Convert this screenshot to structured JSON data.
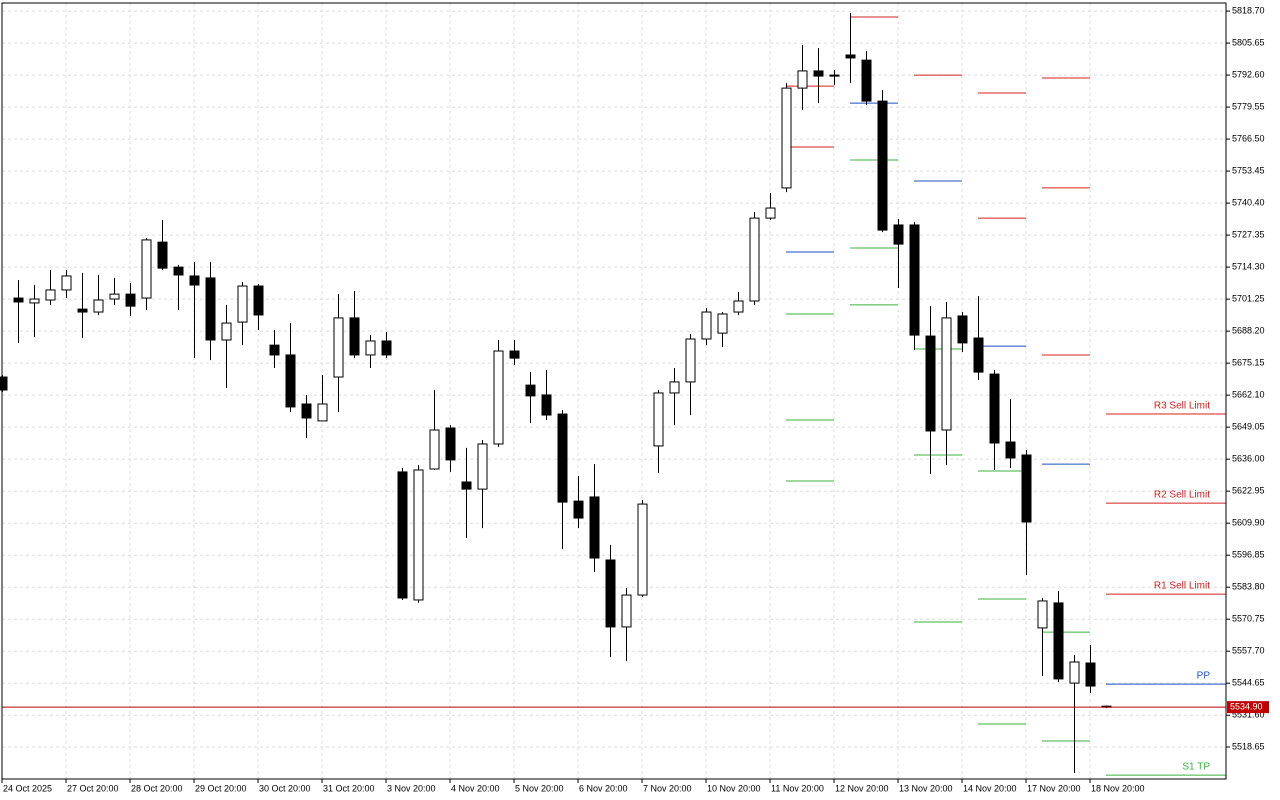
{
  "chart_data": {
    "type": "candlestick",
    "categories": [
      "24 Oct 2025",
      null,
      null,
      null,
      "27 Oct 20:00",
      null,
      null,
      null,
      "28 Oct 20:00",
      null,
      null,
      null,
      "29 Oct 20:00",
      null,
      null,
      null,
      "30 Oct 20:00",
      null,
      null,
      null,
      "31 Oct 20:00",
      null,
      null,
      null,
      "3 Nov 20:00",
      null,
      null,
      null,
      "4 Nov 20:00",
      null,
      null,
      null,
      "5 Nov 20:00",
      null,
      null,
      null,
      "6 Nov 20:00",
      null,
      null,
      null,
      "7 Nov 20:00",
      null,
      null,
      null,
      "10 Nov 20:00",
      null,
      null,
      null,
      "11 Nov 20:00",
      null,
      null,
      null,
      "12 Nov 20:00",
      null,
      null,
      null,
      "13 Nov 20:00",
      null,
      null,
      null,
      "14 Nov 20:00",
      null,
      null,
      null,
      "17 Nov 20:00",
      null,
      null,
      null,
      "18 Nov 20:00",
      null
    ],
    "open": [
      5669.5,
      5701.7,
      5699.7,
      5700.9,
      5705.0,
      5697.2,
      5696.0,
      5701.3,
      5703.3,
      5701.7,
      5724.5,
      5714.3,
      5710.7,
      5709.9,
      5684.6,
      5691.9,
      5706.6,
      5682.5,
      5678.5,
      5658.5,
      5651.6,
      5669.5,
      5693.6,
      5678.5,
      5684.2,
      5630.8,
      5578.6,
      5632.0,
      5648.7,
      5626.7,
      5623.8,
      5642.2,
      5680.1,
      5666.2,
      5662.2,
      5654.4,
      5618.9,
      5620.6,
      5594.9,
      5567.6,
      5580.6,
      5641.4,
      5663.0,
      5667.5,
      5685.0,
      5687.4,
      5696.0,
      5700.5,
      5734.3,
      5746.6,
      5787.3,
      5794.3,
      5792.6,
      5800.8,
      5798.7,
      5782.0,
      5731.5,
      5731.5,
      5686.2,
      5647.9,
      5694.4,
      5685.4,
      5670.7,
      5643.0,
      5637.7,
      5567.2,
      5577.4,
      5544.7,
      5552.9,
      5535.3
    ],
    "high": [
      5670.3,
      5709.0,
      5707.0,
      5713.1,
      5713.1,
      5711.9,
      5711.1,
      5709.9,
      5707.8,
      5726.2,
      5733.5,
      5715.2,
      5716.4,
      5716.4,
      5698.9,
      5708.2,
      5707.4,
      5688.7,
      5691.5,
      5662.2,
      5670.3,
      5703.3,
      5704.6,
      5686.6,
      5687.8,
      5632.4,
      5633.6,
      5664.2,
      5649.9,
      5640.6,
      5643.8,
      5684.6,
      5684.6,
      5671.5,
      5672.4,
      5656.0,
      5629.1,
      5634.0,
      5601.0,
      5583.5,
      5619.3,
      5664.2,
      5673.2,
      5687.0,
      5697.6,
      5696.0,
      5704.2,
      5736.8,
      5744.5,
      5789.4,
      5804.9,
      5803.6,
      5794.7,
      5817.9,
      5802.4,
      5786.5,
      5733.9,
      5732.7,
      5698.4,
      5700.1,
      5696.0,
      5702.5,
      5672.4,
      5660.5,
      5639.7,
      5579.4,
      5582.3,
      5556.2,
      5560.2,
      5535.5
    ],
    "low": [
      5663.4,
      5683.4,
      5685.8,
      5698.9,
      5701.7,
      5685.4,
      5694.8,
      5698.9,
      5694.4,
      5696.8,
      5713.1,
      5696.8,
      5677.2,
      5676.4,
      5665.0,
      5682.5,
      5688.7,
      5673.2,
      5655.2,
      5644.6,
      5651.6,
      5655.2,
      5677.2,
      5673.2,
      5677.2,
      5578.6,
      5577.4,
      5631.6,
      5630.8,
      5603.9,
      5607.9,
      5641.0,
      5674.4,
      5650.7,
      5652.0,
      5599.4,
      5607.9,
      5590.0,
      5555.3,
      5553.7,
      5579.8,
      5630.4,
      5649.9,
      5654.0,
      5682.5,
      5681.7,
      5694.8,
      5698.9,
      5733.5,
      5744.9,
      5778.4,
      5781.2,
      5788.5,
      5789.4,
      5780.4,
      5728.6,
      5705.8,
      5680.5,
      5630.0,
      5633.6,
      5679.7,
      5668.3,
      5631.6,
      5632.4,
      5588.8,
      5547.6,
      5545.1,
      5508.0,
      5540.7,
      5534.5
    ],
    "close": [
      5664.2,
      5700.1,
      5701.3,
      5705.0,
      5710.7,
      5696.0,
      5700.9,
      5703.3,
      5698.4,
      5725.4,
      5713.9,
      5711.1,
      5707.0,
      5684.6,
      5691.5,
      5706.6,
      5694.8,
      5678.5,
      5657.3,
      5652.8,
      5658.5,
      5693.6,
      5678.5,
      5684.2,
      5678.5,
      5579.4,
      5631.6,
      5647.9,
      5635.7,
      5623.8,
      5642.2,
      5680.1,
      5677.2,
      5661.8,
      5654.0,
      5618.5,
      5612.0,
      5595.7,
      5567.6,
      5580.6,
      5617.7,
      5663.0,
      5667.5,
      5685.0,
      5696.0,
      5695.2,
      5700.5,
      5734.3,
      5738.4,
      5787.3,
      5794.3,
      5792.2,
      5792.2,
      5799.6,
      5782.0,
      5729.4,
      5723.7,
      5686.6,
      5647.5,
      5693.6,
      5683.4,
      5671.5,
      5642.6,
      5636.5,
      5610.4,
      5578.2,
      5546.4,
      5553.3,
      5543.5,
      5534.9
    ],
    "ylim": [
      5505.6,
      5822.0
    ],
    "yticks": [
      {
        "value": 5818.7,
        "label": "5818.70"
      },
      {
        "value": 5805.65,
        "label": "5805.65"
      },
      {
        "value": 5792.6,
        "label": "5792.60"
      },
      {
        "value": 5779.55,
        "label": "5779.55"
      },
      {
        "value": 5766.5,
        "label": "5766.50"
      },
      {
        "value": 5753.45,
        "label": "5753.45"
      },
      {
        "value": 5740.4,
        "label": "5740.40"
      },
      {
        "value": 5727.35,
        "label": "5727.35"
      },
      {
        "value": 5714.3,
        "label": "5714.30"
      },
      {
        "value": 5701.25,
        "label": "5701.25"
      },
      {
        "value": 5688.2,
        "label": "5688.20"
      },
      {
        "value": 5675.15,
        "label": "5675.15"
      },
      {
        "value": 5662.1,
        "label": "5662.10"
      },
      {
        "value": 5649.05,
        "label": "5649.05"
      },
      {
        "value": 5636,
        "label": "5636.00"
      },
      {
        "value": 5622.95,
        "label": "5622.95"
      },
      {
        "value": 5609.9,
        "label": "5609.90"
      },
      {
        "value": 5596.85,
        "label": "5596.85"
      },
      {
        "value": 5583.8,
        "label": "5583.80"
      },
      {
        "value": 5570.75,
        "label": "5570.75"
      },
      {
        "value": 5557.7,
        "label": "5557.70"
      },
      {
        "value": 5544.65,
        "label": "5544.65"
      },
      {
        "value": 5531.6,
        "label": "5531.60"
      },
      {
        "value": 5518.65,
        "label": "5518.65"
      }
    ],
    "grid": true,
    "up_color": "#ffffff",
    "down_color": "#000000",
    "resistance_color": "#d42020",
    "pivot_color": "#1f4fbf",
    "support_color": "#3cb03c",
    "levels": [
      {
        "candle": 49,
        "resistance": [
          5788.1,
          5763.3
        ],
        "pivot": 5720.5,
        "support": [
          5695.2,
          5652.0,
          5627.1
        ]
      },
      {
        "candle": 53,
        "resistance": [
          5816.3
        ],
        "pivot": 5781.2,
        "support": [
          5758.0,
          5722.1,
          5698.9
        ]
      },
      {
        "candle": 57,
        "resistance": [
          5792.6
        ],
        "pivot": 5749.4,
        "support": [
          5680.9,
          5637.7,
          5569.6
        ]
      },
      {
        "candle": 61,
        "resistance": [
          5785.3,
          5734.3
        ],
        "pivot": 5682.1,
        "support": [
          5631.2,
          5579.0,
          5528.0
        ]
      },
      {
        "candle": 65,
        "resistance": [
          5791.4,
          5746.6,
          5678.5
        ],
        "pivot": 5634.0,
        "support": [
          5565.5,
          5521.1
        ]
      }
    ],
    "current_levels": [
      {
        "label": "R3 Sell Limit",
        "value": 5654.4,
        "color": "#d42020"
      },
      {
        "label": "R2 Sell Limit",
        "value": 5618.1,
        "color": "#d42020"
      },
      {
        "label": "R1 Sell Limit",
        "value": 5581.0,
        "color": "#d42020"
      },
      {
        "label": "PP",
        "value": 5544.3,
        "color": "#1f4fbf"
      },
      {
        "label": "S1 TP",
        "value": 5507.2,
        "color": "#3cb03c"
      }
    ],
    "last_price": {
      "value": 5534.9,
      "label": "5534.90",
      "color": "#c00000"
    }
  }
}
